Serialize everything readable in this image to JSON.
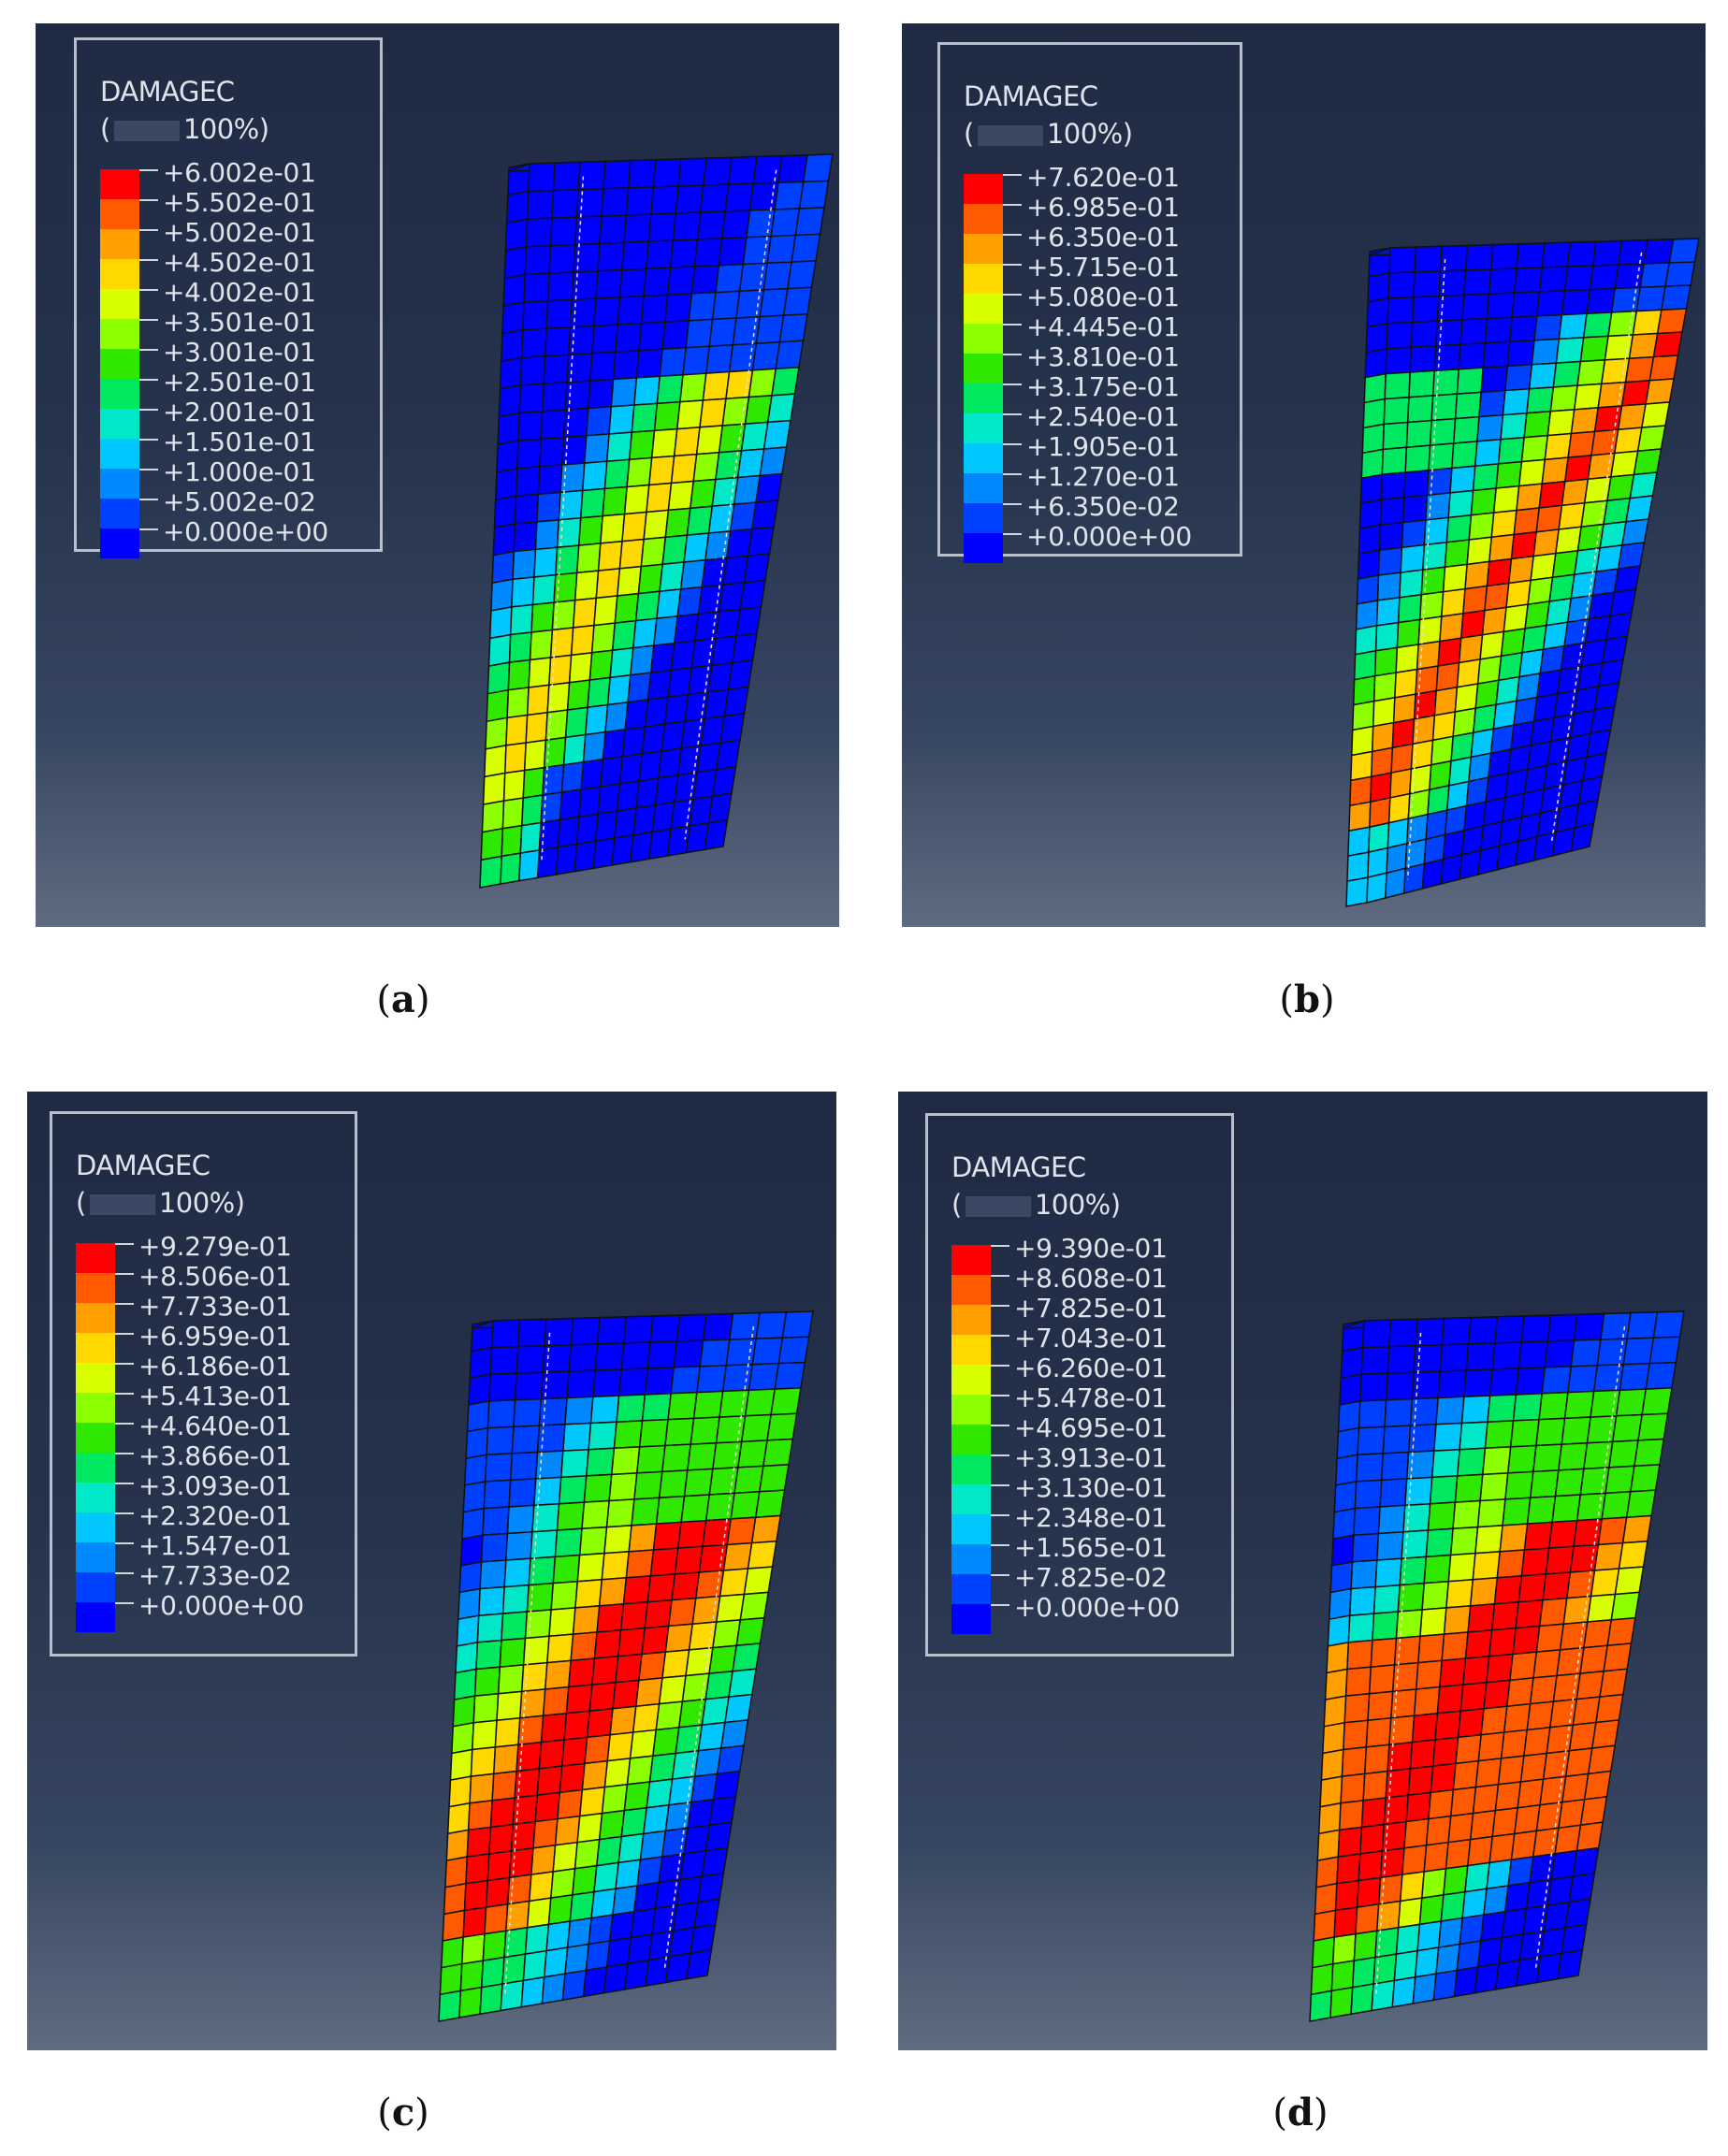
{
  "panels": [
    {
      "id": "a",
      "legend": {
        "title": "DAMAGEC",
        "subtitle_left": "(",
        "subtitle_right": "100%)",
        "values": [
          "+6.002e-01",
          "+5.502e-01",
          "+5.002e-01",
          "+4.502e-01",
          "+4.002e-01",
          "+3.501e-01",
          "+3.001e-01",
          "+2.501e-01",
          "+2.001e-01",
          "+1.501e-01",
          "+1.000e-01",
          "+5.002e-02",
          "+0.000e+00"
        ]
      },
      "caption": "a",
      "max_damage": 0.6002
    },
    {
      "id": "b",
      "legend": {
        "title": "DAMAGEC",
        "subtitle_left": "(",
        "subtitle_right": "100%)",
        "values": [
          "+7.620e-01",
          "+6.985e-01",
          "+6.350e-01",
          "+5.715e-01",
          "+5.080e-01",
          "+4.445e-01",
          "+3.810e-01",
          "+3.175e-01",
          "+2.540e-01",
          "+1.905e-01",
          "+1.270e-01",
          "+6.350e-02",
          "+0.000e+00"
        ]
      },
      "caption": "b",
      "max_damage": 0.762
    },
    {
      "id": "c",
      "legend": {
        "title": "DAMAGEC",
        "subtitle_left": "(",
        "subtitle_right": "100%)",
        "values": [
          "+9.279e-01",
          "+8.506e-01",
          "+7.733e-01",
          "+6.959e-01",
          "+6.186e-01",
          "+5.413e-01",
          "+4.640e-01",
          "+3.866e-01",
          "+3.093e-01",
          "+2.320e-01",
          "+1.547e-01",
          "+7.733e-02",
          "+0.000e+00"
        ]
      },
      "caption": "c",
      "max_damage": 0.9279
    },
    {
      "id": "d",
      "legend": {
        "title": "DAMAGEC",
        "subtitle_left": "(",
        "subtitle_right": "100%)",
        "values": [
          "+9.390e-01",
          "+8.608e-01",
          "+7.825e-01",
          "+7.043e-01",
          "+6.260e-01",
          "+5.478e-01",
          "+4.695e-01",
          "+3.913e-01",
          "+3.130e-01",
          "+2.348e-01",
          "+1.565e-01",
          "+7.825e-02",
          "+0.000e+00"
        ]
      },
      "caption": "d",
      "max_damage": 0.939
    }
  ],
  "colormap": [
    "#ff0000",
    "#ff5a00",
    "#ffa000",
    "#ffd800",
    "#d8ff00",
    "#8cff00",
    "#2ee800",
    "#00e860",
    "#00e8c8",
    "#00c8ff",
    "#0088ff",
    "#0040ff",
    "#0000ff"
  ]
}
